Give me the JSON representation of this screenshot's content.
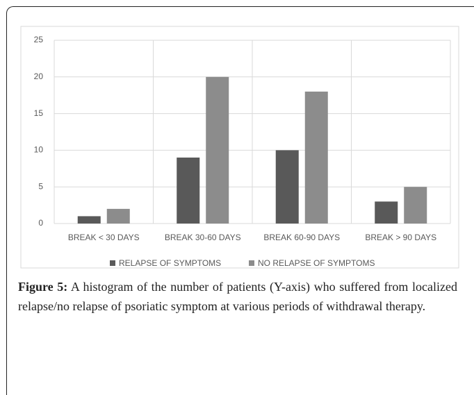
{
  "chart_data": {
    "type": "bar",
    "categories": [
      "BREAK < 30 DAYS",
      "BREAK 30-60 DAYS",
      "BREAK 60-90 DAYS",
      "BREAK > 90 DAYS"
    ],
    "series": [
      {
        "name": "RELAPSE OF SYMPTOMS",
        "color": "#595959",
        "values": [
          1,
          9,
          10,
          3
        ]
      },
      {
        "name": "NO RELAPSE OF SYMPTOMS",
        "color": "#8c8c8c",
        "values": [
          2,
          20,
          18,
          5
        ]
      }
    ],
    "ylim": [
      0,
      25
    ],
    "yticks": [
      0,
      5,
      10,
      15,
      20,
      25
    ],
    "grid": true,
    "legend": "bottom"
  },
  "caption": {
    "label": "Figure 5:",
    "text": "A histogram of the number of patients (Y-axis) who suffered from localized relapse/no relapse of psoriatic symptom at various periods of withdrawal therapy."
  }
}
